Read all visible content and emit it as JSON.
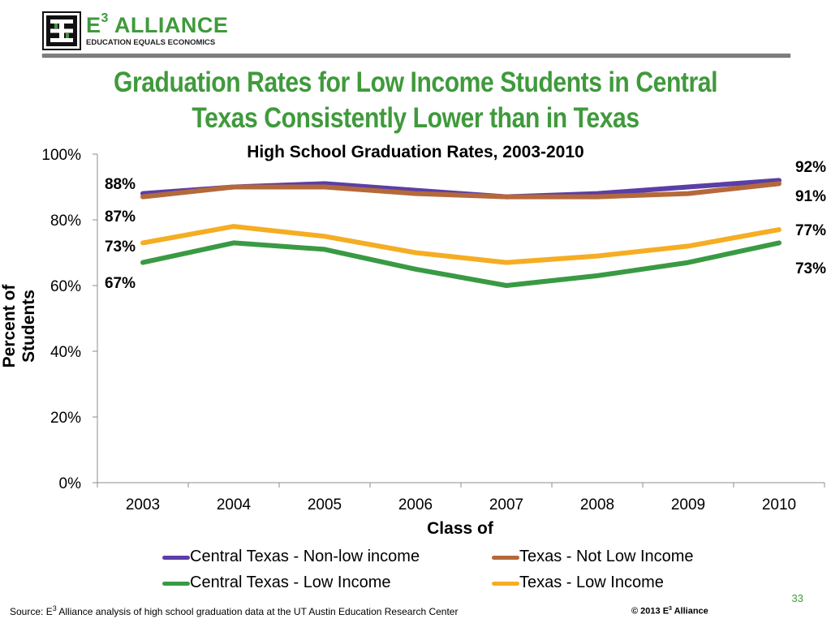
{
  "logo": {
    "name_prefix": "E",
    "name_sup": "3",
    "name_suffix": " ALLIANCE",
    "tagline": "EDUCATION EQUALS ECONOMICS"
  },
  "slide_title_line1": "Graduation Rates for Low Income Students in Central",
  "slide_title_line2": "Texas Consistently Lower than in Texas",
  "chart_data": {
    "type": "line",
    "title": "High School Graduation Rates, 2003-2010",
    "xlabel": "Class of",
    "ylabel": "Percent of Students",
    "categories": [
      "2003",
      "2004",
      "2005",
      "2006",
      "2007",
      "2008",
      "2009",
      "2010"
    ],
    "ylim": [
      0,
      100
    ],
    "y_ticks": [
      "0%",
      "20%",
      "40%",
      "60%",
      "80%",
      "100%"
    ],
    "grid": false,
    "legend_position": "bottom",
    "series": [
      {
        "name": "Central Texas - Non-low income",
        "color": "#5b3ea6",
        "values": [
          88,
          90,
          91,
          89,
          87,
          88,
          90,
          92
        ],
        "label_first": "88%",
        "label_last": "92%"
      },
      {
        "name": "Texas - Not Low Income",
        "color": "#b5693a",
        "values": [
          87,
          90,
          90,
          88,
          87,
          87,
          88,
          91
        ],
        "label_first": "87%",
        "label_last": "91%"
      },
      {
        "name": "Central Texas - Low Income",
        "color": "#3a9a44",
        "values": [
          67,
          73,
          71,
          65,
          60,
          63,
          67,
          73
        ],
        "label_first": "67%",
        "label_last": "73%"
      },
      {
        "name": "Texas - Low Income",
        "color": "#f5ad23",
        "values": [
          73,
          78,
          75,
          70,
          67,
          69,
          72,
          77
        ],
        "label_first": "73%",
        "label_last": "77%"
      }
    ]
  },
  "footer": {
    "page_number": "33",
    "source_prefix": "Source: E",
    "source_sup": "3",
    "source_suffix": " Alliance analysis of high school graduation data at the UT Austin Education Research Center",
    "copyright_prefix": "© 2013 E",
    "copyright_sup": "3",
    "copyright_suffix": " Alliance"
  }
}
